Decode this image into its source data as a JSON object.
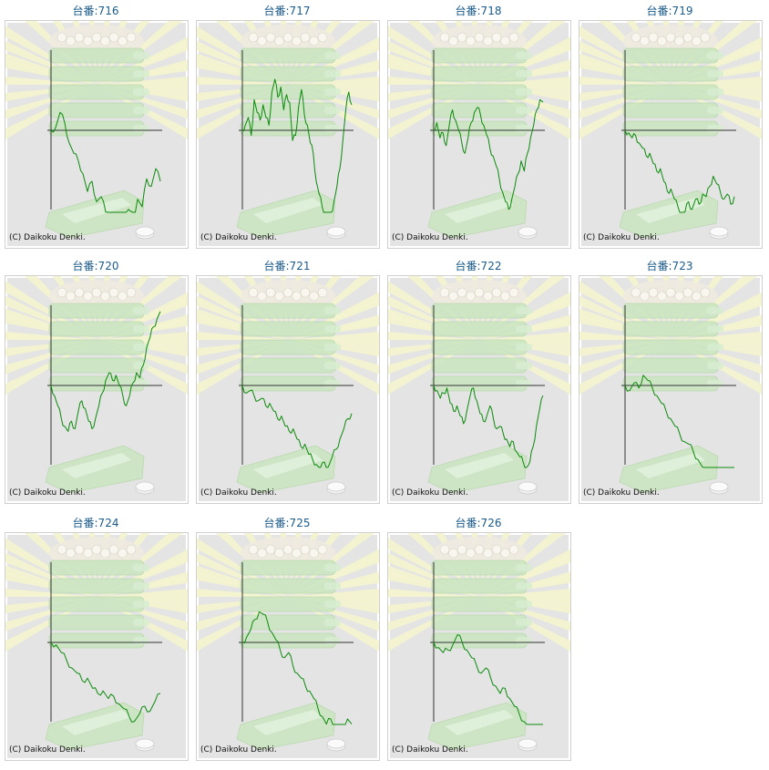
{
  "copyright_text": "(C) Daikoku Denki.",
  "colors": {
    "title": "#1a5a8a",
    "graph_line": "#0a8a0a",
    "axis": "#333333",
    "panel_bg": "#e4e4e4",
    "watermark_green": "#c9e5c0",
    "rays": "#f4f4cf"
  },
  "machines": [
    {
      "label": "台番:716",
      "series": [
        0.0,
        0.1,
        0.7,
        0.3,
        -0.5,
        -0.9,
        -1.2,
        -1.7,
        -2.4,
        -2.0,
        -2.8,
        -2.6,
        -3.2,
        -3.4,
        -3.3,
        -3.6,
        -3.8,
        -3.1,
        -3.5,
        -2.7,
        -3.0,
        -1.9,
        -2.2,
        -1.5,
        -2.0
      ]
    },
    {
      "label": "台番:717",
      "series": [
        0.0,
        0.2,
        0.5,
        -0.2,
        1.2,
        0.7,
        0.4,
        1.0,
        0.5,
        0.2,
        1.5,
        2.0,
        1.3,
        1.7,
        0.8,
        1.4,
        1.1,
        -0.4,
        -0.2,
        0.9,
        1.6,
        0.6,
        0.2,
        -0.5,
        -0.9,
        -2.0,
        -2.5,
        -3.0,
        -3.4,
        -3.6,
        -3.3,
        -2.8,
        -2.2,
        -1.5,
        -0.4,
        0.8,
        1.5,
        1.0
      ]
    },
    {
      "label": "台番:718",
      "series": [
        0.0,
        0.3,
        -0.3,
        -0.1,
        -0.6,
        0.2,
        0.8,
        0.4,
        0.0,
        -0.5,
        -0.9,
        -0.3,
        0.3,
        0.7,
        0.9,
        0.6,
        0.2,
        -0.2,
        -0.7,
        -1.0,
        -1.4,
        -1.9,
        -2.4,
        -2.8,
        -3.1,
        -2.7,
        -2.2,
        -1.7,
        -1.2,
        -1.6,
        -0.9,
        -0.3,
        0.2,
        0.8,
        1.2,
        1.1
      ]
    },
    {
      "label": "台番:719",
      "series": [
        0.0,
        -0.1,
        -0.3,
        -0.2,
        -0.5,
        -0.7,
        -1.0,
        -0.9,
        -1.3,
        -1.6,
        -1.5,
        -2.0,
        -2.4,
        -2.3,
        -2.7,
        -3.0,
        -3.3,
        -3.2,
        -2.8,
        -3.1,
        -2.7,
        -2.9,
        -2.5,
        -2.6,
        -2.2,
        -1.8,
        -2.1,
        -2.4,
        -2.7,
        -2.5,
        -2.9,
        -2.6
      ]
    },
    {
      "label": "台番:720",
      "series": [
        0.0,
        -0.4,
        -0.8,
        -1.3,
        -1.6,
        -1.8,
        -1.4,
        -1.7,
        -1.0,
        -0.6,
        -0.9,
        -1.4,
        -1.7,
        -1.3,
        -0.8,
        -0.3,
        0.2,
        0.5,
        0.2,
        0.4,
        0.0,
        -0.4,
        -0.8,
        -0.4,
        0.1,
        0.5,
        0.3,
        0.8,
        1.5,
        1.9,
        2.3,
        2.6,
        2.9
      ]
    },
    {
      "label": "台番:721",
      "series": [
        0.0,
        -0.3,
        -0.2,
        -0.4,
        -0.6,
        -0.5,
        -0.8,
        -0.7,
        -1.0,
        -1.3,
        -1.2,
        -1.6,
        -1.8,
        -1.7,
        -2.1,
        -2.4,
        -2.3,
        -2.7,
        -2.9,
        -3.1,
        -3.3,
        -3.0,
        -3.2,
        -2.8,
        -2.5,
        -2.1,
        -1.7,
        -1.3,
        -1.1
      ]
    },
    {
      "label": "台番:722",
      "series": [
        0.0,
        -0.2,
        -0.5,
        -0.3,
        -0.1,
        -0.7,
        -1.0,
        -0.8,
        -1.2,
        -1.5,
        -1.0,
        -0.4,
        -0.1,
        -0.6,
        -1.1,
        -1.4,
        -1.2,
        -0.8,
        -1.3,
        -1.7,
        -1.6,
        -1.9,
        -2.1,
        -2.4,
        -2.2,
        -2.6,
        -2.8,
        -3.0,
        -3.3,
        -3.0,
        -2.4,
        -1.6,
        -0.9,
        -0.4
      ]
    },
    {
      "label": "台番:723",
      "series": [
        0.0,
        -0.2,
        0.1,
        -0.1,
        0.4,
        0.2,
        -0.1,
        -0.4,
        -0.7,
        -1.0,
        -1.3,
        -1.6,
        -1.9,
        -2.2,
        -2.3,
        -2.6,
        -2.9,
        -3.2,
        -3.5,
        -3.8,
        -4.1,
        -4.3,
        -4.6,
        -4.9,
        -4.5
      ]
    },
    {
      "label": "台番:724",
      "series": [
        0.0,
        -0.1,
        -0.4,
        -0.7,
        -1.0,
        -1.2,
        -1.5,
        -1.4,
        -1.8,
        -2.0,
        -1.9,
        -2.2,
        -2.1,
        -2.4,
        -2.6,
        -2.9,
        -3.1,
        -2.8,
        -2.5,
        -2.7,
        -2.3,
        -2.0
      ]
    },
    {
      "label": "台番:725",
      "series": [
        0.0,
        0.2,
        0.5,
        0.9,
        1.2,
        1.1,
        0.8,
        0.4,
        0.1,
        -0.3,
        -0.6,
        -0.4,
        -0.9,
        -1.2,
        -1.4,
        -1.7,
        -1.9,
        -2.2,
        -2.6,
        -2.9,
        -3.2,
        -3.0,
        -3.3,
        -3.6,
        -3.4,
        -3.0,
        -3.2
      ]
    },
    {
      "label": "台番:726",
      "series": [
        0.0,
        -0.2,
        -0.4,
        -0.3,
        -0.1,
        0.3,
        0.0,
        -0.3,
        -0.6,
        -0.9,
        -1.2,
        -1.0,
        -1.4,
        -1.7,
        -2.0,
        -1.8,
        -2.2,
        -2.5,
        -2.8,
        -3.1,
        -3.3,
        -3.6,
        -3.9,
        -3.7
      ]
    }
  ]
}
